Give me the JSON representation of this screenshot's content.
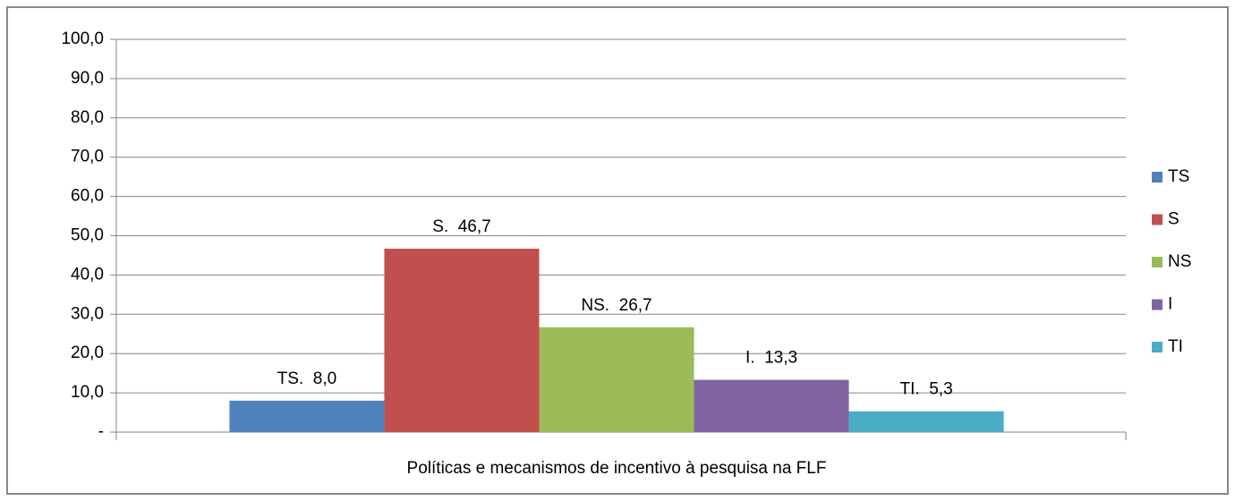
{
  "chart_data": {
    "type": "bar",
    "categories": [
      "Políticas e mecanismos de incentivo à pesquisa na FLF"
    ],
    "series": [
      {
        "name": "TS",
        "color": "#4f81bd",
        "values": [
          8.0
        ],
        "value_labels": [
          "TS.  8,0"
        ]
      },
      {
        "name": "S",
        "color": "#c0504d",
        "values": [
          46.7
        ],
        "value_labels": [
          "S.  46,7"
        ]
      },
      {
        "name": "NS",
        "color": "#9bbb59",
        "values": [
          26.7
        ],
        "value_labels": [
          "NS.  26,7"
        ]
      },
      {
        "name": "I",
        "color": "#8064a2",
        "values": [
          13.3
        ],
        "value_labels": [
          "I.  13,3"
        ]
      },
      {
        "name": "TI",
        "color": "#4bacc6",
        "values": [
          5.3
        ],
        "value_labels": [
          "TI.  5,3"
        ]
      }
    ],
    "ylim": [
      0,
      100
    ],
    "yticks": [
      {
        "value": 0,
        "label": "-"
      },
      {
        "value": 10,
        "label": "10,0"
      },
      {
        "value": 20,
        "label": "20,0"
      },
      {
        "value": 30,
        "label": "30,0"
      },
      {
        "value": 40,
        "label": "40,0"
      },
      {
        "value": 50,
        "label": "50,0"
      },
      {
        "value": 60,
        "label": "60,0"
      },
      {
        "value": 70,
        "label": "70,0"
      },
      {
        "value": 80,
        "label": "80,0"
      },
      {
        "value": 90,
        "label": "90,0"
      },
      {
        "value": 100,
        "label": "100,0"
      }
    ],
    "grid": true,
    "legend": "right"
  }
}
